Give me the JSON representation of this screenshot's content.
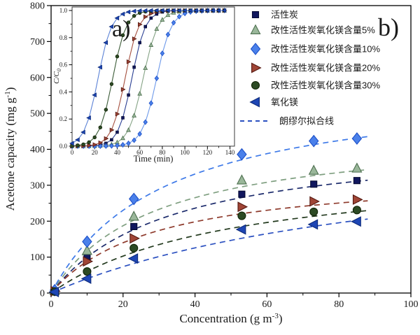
{
  "figure": {
    "panel_label_inset": "a)",
    "panel_label_main": "b)",
    "background": "#ffffff",
    "frame_color": "#000000"
  },
  "legend": {
    "position": "top-right",
    "border": "none",
    "items": [
      {
        "label": "活性炭",
        "series": 0
      },
      {
        "label": "改性活性炭氧化镁含量5%",
        "series": 1
      },
      {
        "label": "改性活性炭氧化镁含量10%",
        "series": 2
      },
      {
        "label": "改性活性炭氧化镁含量20%",
        "series": 3
      },
      {
        "label": "改性活性炭氧化镁含量30%",
        "series": 4
      },
      {
        "label": "氧化镁",
        "series": 5
      }
    ],
    "fit_line_label": "朗缪尔拟合线",
    "fit_line_color": "#2b50c0"
  },
  "chart_data": [
    {
      "type": "scatter",
      "title": "",
      "xlabel": "Concentration (g m⁻³)",
      "ylabel": "Acetone capacity (mg g⁻¹)",
      "xlabel_parts": {
        "base": "Concentration (g m",
        "sup": "-3",
        "close": ")"
      },
      "ylabel_parts": {
        "base": "Acetone capacity (mg g",
        "sup": "-1",
        "close": ")"
      },
      "xlim": [
        0,
        100
      ],
      "ylim": [
        0,
        800
      ],
      "xticks": {
        "labels": [
          "0",
          "20",
          "40",
          "60",
          "80",
          "100"
        ],
        "values": [
          0,
          20,
          40,
          60,
          80,
          100
        ],
        "minor": [
          10,
          30,
          50,
          70,
          90
        ]
      },
      "yticks": {
        "labels": [
          "0",
          "100",
          "200",
          "300",
          "400",
          "500",
          "600",
          "700",
          "800"
        ],
        "values": [
          0,
          100,
          200,
          300,
          400,
          500,
          600,
          700,
          800
        ],
        "minor": [
          50,
          150,
          250,
          350,
          450,
          550,
          650,
          750
        ]
      },
      "grid": false,
      "x": [
        1,
        10,
        23,
        53,
        73,
        85
      ],
      "series": [
        {
          "name": "活性炭",
          "marker": "square",
          "size": 10,
          "fill": "#11175e",
          "edge": "#050a33",
          "fit_color": "#1b2a6b",
          "inset_line": "#2a3f93",
          "capacity": [
            5,
            100,
            185,
            275,
            303,
            313
          ],
          "langmuir_fit": {
            "qm": 433,
            "b": 0.03
          }
        },
        {
          "name": "改性活性炭氧化镁含量5%",
          "marker": "triangle-up",
          "size": 12,
          "fill": "#9ab79a",
          "edge": "#4e7050",
          "fit_color": "#7f9f80",
          "inset_line": "#85a385",
          "capacity": [
            6,
            118,
            213,
            314,
            341,
            347
          ],
          "langmuir_fit": {
            "qm": 455,
            "b": 0.035
          }
        },
        {
          "name": "改性活性炭氧化镁含量10%",
          "marker": "diamond",
          "size": 13,
          "fill": "#4a80ea",
          "edge": "#1d50c8",
          "fit_color": "#3d79e8",
          "inset_line": "#6d99ea",
          "capacity": [
            8,
            143,
            262,
            386,
            423,
            430
          ],
          "langmuir_fit": {
            "qm": 590,
            "b": 0.032
          }
        },
        {
          "name": "改性活性炭氧化镁含量20%",
          "marker": "triangle-right",
          "size": 12,
          "fill": "#a04536",
          "edge": "#551810",
          "fit_color": "#8e3a2c",
          "inset_line": "#a5503f",
          "capacity": [
            5,
            88,
            152,
            240,
            255,
            260
          ],
          "langmuir_fit": {
            "qm": 340,
            "b": 0.035
          }
        },
        {
          "name": "改性活性炭氧化镁含量30%",
          "marker": "circle",
          "size": 11,
          "fill": "#2c4a24",
          "edge": "#122407",
          "fit_color": "#22391d",
          "inset_line": "#3c5c38",
          "capacity": [
            4,
            60,
            125,
            215,
            226,
            231
          ],
          "langmuir_fit": {
            "qm": 360,
            "b": 0.02
          }
        },
        {
          "name": "氧化镁",
          "marker": "triangle-left",
          "size": 12,
          "fill": "#1e46b4",
          "edge": "#0c2a7a",
          "fit_color": "#2b50c0",
          "inset_line": "#5b82d6",
          "capacity": [
            3,
            40,
            96,
            177,
            191,
            199
          ],
          "langmuir_fit": {
            "qm": 440,
            "b": 0.01
          }
        }
      ],
      "fit_line_style": "dashed",
      "fit_range": [
        0,
        88
      ]
    },
    {
      "type": "line",
      "title": "",
      "xlabel": "Time (min)",
      "ylabel": "C/C₀",
      "ylabel_parts": {
        "base": "C/C",
        "sub": "0"
      },
      "xlim": [
        0,
        144
      ],
      "ylim": [
        0.0,
        1.0
      ],
      "xticks": {
        "labels": [
          "0",
          "20",
          "40",
          "60",
          "80",
          "100",
          "120",
          "140"
        ],
        "values": [
          0,
          20,
          40,
          60,
          80,
          100,
          120,
          140
        ],
        "minor": [
          10,
          30,
          50,
          70,
          90,
          110,
          130
        ]
      },
      "yticks": {
        "labels": [
          "0.0",
          "0.2",
          "0.4",
          "0.6",
          "0.8",
          "1.0"
        ],
        "values": [
          0.0,
          0.2,
          0.4,
          0.6,
          0.8,
          1.0
        ],
        "minor": [
          0.1,
          0.3,
          0.5,
          0.7,
          0.9
        ]
      },
      "grid": false,
      "t": [
        0,
        5,
        10,
        15,
        20,
        25,
        30,
        35,
        40,
        45,
        50,
        55,
        60,
        65,
        70,
        75,
        80,
        85,
        90,
        95,
        100,
        105,
        110,
        115,
        120,
        125,
        130,
        135
      ],
      "series": [
        {
          "name": "活性炭",
          "cc0": [
            0,
            0,
            0.001,
            0.002,
            0.004,
            0.009,
            0.021,
            0.047,
            0.103,
            0.209,
            0.377,
            0.582,
            0.763,
            0.881,
            0.944,
            0.974,
            0.989,
            0.995,
            0.998,
            0.999,
            1,
            1,
            1,
            1,
            1,
            1,
            1,
            1
          ]
        },
        {
          "name": "改性活性炭氧化镁含量5%",
          "cc0": [
            0,
            0,
            0,
            0.001,
            0.001,
            0.003,
            0.006,
            0.013,
            0.028,
            0.059,
            0.119,
            0.226,
            0.387,
            0.576,
            0.746,
            0.864,
            0.932,
            0.967,
            0.984,
            0.992,
            0.996,
            0.998,
            0.999,
            1,
            1,
            1,
            1,
            1
          ]
        },
        {
          "name": "改性活性炭氧化镁含量10%",
          "cc0": [
            0,
            0,
            0,
            0,
            0,
            0,
            0.001,
            0.002,
            0.005,
            0.01,
            0.021,
            0.044,
            0.09,
            0.177,
            0.317,
            0.5,
            0.684,
            0.823,
            0.91,
            0.955,
            0.978,
            0.989,
            0.995,
            0.997,
            0.999,
            1,
            1,
            1
          ]
        },
        {
          "name": "改性活性炭氧化镁含量20%",
          "cc0": [
            0,
            0.001,
            0.002,
            0.005,
            0.011,
            0.025,
            0.056,
            0.119,
            0.237,
            0.418,
            0.622,
            0.791,
            0.897,
            0.953,
            0.978,
            0.99,
            0.996,
            0.998,
            0.999,
            1,
            1,
            1,
            1,
            1,
            1,
            1,
            1,
            1
          ]
        },
        {
          "name": "改性活性炭氧化镁含量30%",
          "cc0": [
            0.002,
            0.006,
            0.013,
            0.029,
            0.065,
            0.138,
            0.269,
            0.458,
            0.661,
            0.818,
            0.912,
            0.96,
            0.982,
            0.992,
            0.996,
            0.998,
            0.999,
            1,
            1,
            1,
            1,
            1,
            1,
            1,
            1,
            1,
            1,
            1
          ]
        },
        {
          "name": "氧化镁",
          "cc0": [
            0.021,
            0.047,
            0.103,
            0.209,
            0.377,
            0.582,
            0.763,
            0.881,
            0.944,
            0.974,
            0.989,
            0.995,
            0.998,
            0.999,
            1,
            1,
            1,
            1,
            1,
            1,
            1,
            1,
            1,
            1,
            1,
            1,
            1,
            1
          ]
        }
      ]
    }
  ]
}
